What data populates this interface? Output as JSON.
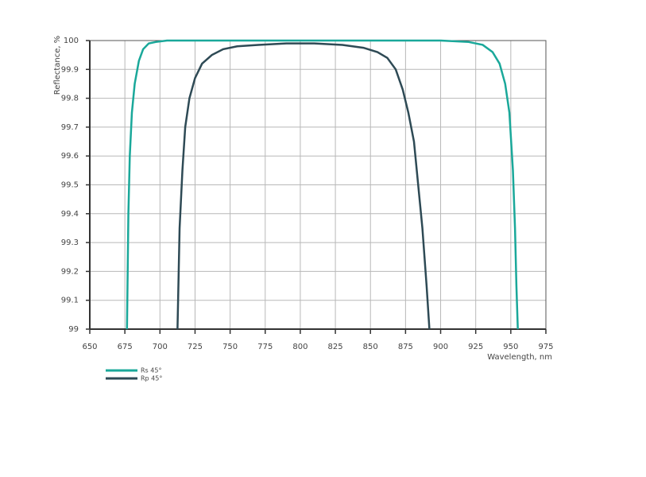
{
  "chart_data": {
    "type": "line",
    "xlabel": "Wavelength, nm",
    "ylabel": "Reflectance, %",
    "xlim": [
      650,
      975
    ],
    "xticks": [
      650,
      675,
      700,
      725,
      750,
      775,
      800,
      825,
      850,
      875,
      900,
      925,
      950,
      975
    ],
    "ylim": [
      99,
      100
    ],
    "yticks": [
      99,
      99.1,
      99.2,
      99.3,
      99.4,
      99.5,
      99.6,
      99.7,
      99.8,
      99.9,
      100
    ],
    "grid": true,
    "legend": "bottom-left",
    "series": [
      {
        "name": "Rs 45°",
        "color": "#1aa89a",
        "x": [
          676.5,
          677.5,
          678.5,
          680,
          682,
          685,
          688,
          692,
          697,
          705,
          750,
          800,
          850,
          900,
          920,
          930,
          937,
          942,
          946,
          949,
          951.5,
          953,
          954,
          955
        ],
        "values": [
          99,
          99.4,
          99.6,
          99.75,
          99.85,
          99.93,
          99.97,
          99.99,
          99.995,
          100,
          100,
          100,
          100,
          100,
          99.995,
          99.985,
          99.96,
          99.92,
          99.85,
          99.75,
          99.55,
          99.35,
          99.15,
          99
        ]
      },
      {
        "name": "Rp 45°",
        "color": "#2e4a55",
        "x": [
          712.5,
          714,
          716,
          718,
          721,
          725,
          730,
          737,
          745,
          755,
          770,
          790,
          810,
          830,
          845,
          855,
          862,
          868,
          873,
          877,
          881,
          884,
          887,
          890,
          892
        ],
        "values": [
          99,
          99.35,
          99.55,
          99.7,
          99.8,
          99.87,
          99.92,
          99.95,
          99.97,
          99.98,
          99.985,
          99.99,
          99.99,
          99.985,
          99.975,
          99.96,
          99.94,
          99.9,
          99.83,
          99.75,
          99.65,
          99.5,
          99.35,
          99.15,
          99
        ]
      }
    ]
  }
}
